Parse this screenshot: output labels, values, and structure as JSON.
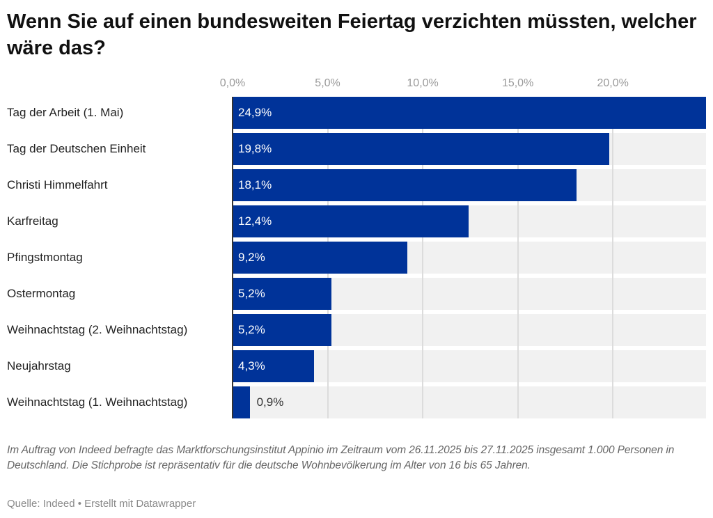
{
  "title": "Wenn Sie auf einen bundesweiten Feiertag verzichten müssten, welcher wäre das?",
  "chart_data": {
    "type": "bar",
    "orientation": "horizontal",
    "categories": [
      "Tag der Arbeit (1. Mai)",
      "Tag der Deutschen Einheit",
      "Christi Himmelfahrt",
      "Karfreitag",
      "Pfingstmontag",
      "Ostermontag",
      "Weihnachtstag (2. Weihnachtstag)",
      "Neujahrstag",
      "Weihnachtstag (1. Weihnachtstag)"
    ],
    "values": [
      24.9,
      19.8,
      18.1,
      12.4,
      9.2,
      5.2,
      5.2,
      4.3,
      0.9
    ],
    "value_labels": [
      "24,9%",
      "19,8%",
      "18,1%",
      "12,4%",
      "9,2%",
      "5,2%",
      "5,2%",
      "4,3%",
      "0,9%"
    ],
    "xticks": [
      0,
      5,
      10,
      15,
      20
    ],
    "xtick_labels": [
      "0,0%",
      "5,0%",
      "10,0%",
      "15,0%",
      "20,0%"
    ],
    "xlim": [
      0,
      24.9
    ],
    "grid": true,
    "bar_color": "#003399",
    "background_bar_color": "#f0f0f0"
  },
  "notes": "Im Auftrag von Indeed befragte das Marktforschungsinstitut Appinio im Zeitraum vom 26.11.2025 bis 27.11.2025 insgesamt 1.000 Personen in Deutschland. Die Stichprobe ist repräsentativ für die deutsche Wohnbevölkerung im Alter von 16 bis 65 Jahren.",
  "source": "Quelle: Indeed • Erstellt mit Datawrapper"
}
